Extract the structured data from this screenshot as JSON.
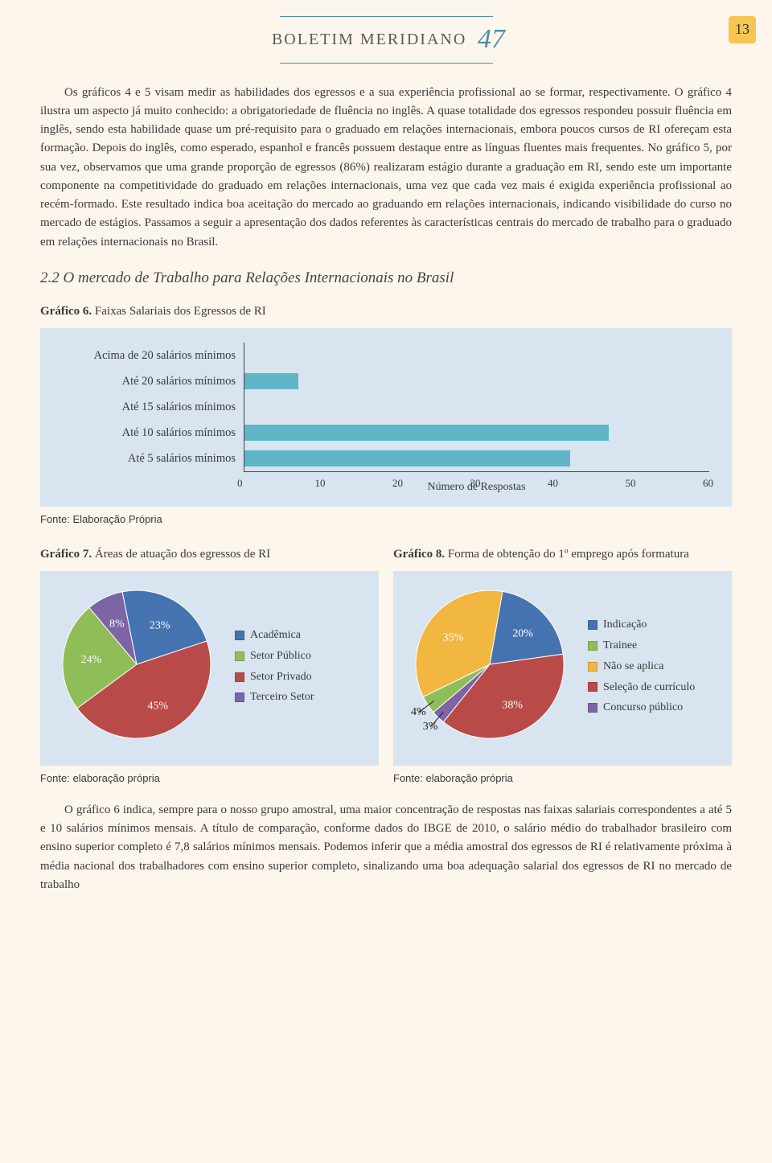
{
  "masthead": {
    "title": "BOLETIM MERIDIANO",
    "issue": "47",
    "rule_color": "#4a8fa6"
  },
  "page_number": "13",
  "page_bg": "#fdf6ed",
  "panel_bg": "#d8e4ef",
  "paragraph1": "Os gráficos 4 e 5 visam medir as habilidades dos egressos e a sua experiência profissional ao se formar, respectivamente. O gráfico 4 ilustra um aspecto já muito conhecido: a obrigatoriedade de fluência no inglês. A quase totalidade dos egressos respondeu possuir fluência em inglês, sendo esta habilidade quase um pré-requisito para o graduado em relações internacionais, embora poucos cursos de RI ofereçam esta formação. Depois do inglês, como esperado, espanhol e francês possuem destaque entre as línguas fluentes mais frequentes. No gráfico 5, por sua vez, observamos que uma grande proporção de egressos (86%) realizaram estágio durante a graduação em RI, sendo este um importante componente na competitividade do graduado em relações internacionais, uma vez que cada vez mais é exigida experiência profissional ao recém-formado. Este resultado indica boa aceitação do mercado ao graduando em relações internacionais, indicando visibilidade do curso no mercado de estágios. Passamos a seguir a apresentação dos dados referentes às características centrais do mercado de trabalho para o graduado em relações internacionais no Brasil.",
  "section_heading": "2.2 O mercado de Trabalho para Relações Internacionais no Brasil",
  "chart6": {
    "caption_bold": "Gráfico 6.",
    "caption_rest": " Faixas Salariais dos Egressos de RI",
    "type": "horizontal-bar",
    "categories": [
      "Acima de 20 salários mínimos",
      "Até 20 salários mínimos",
      "Até 15 salários mínimos",
      "Até 10 salários mínimos",
      "Até 5 salários mínimos"
    ],
    "values": [
      0,
      7,
      0,
      47,
      42
    ],
    "bar_color": "#5fb6c7",
    "axis_color": "#444444",
    "xlim": [
      0,
      60
    ],
    "xtick_step": 10,
    "xticks": [
      "0",
      "10",
      "20",
      "30",
      "40",
      "50",
      "60"
    ],
    "xlabel": "Número de Respostas",
    "source": "Fonte: Elaboração Própria"
  },
  "chart7": {
    "caption_bold": "Gráfico 7.",
    "caption_rest": " Áreas de atuação dos egressos de RI",
    "type": "pie",
    "slices": [
      {
        "label": "Acadêmica",
        "pct": 23,
        "color": "#4573b0",
        "text": "23%"
      },
      {
        "label": "Setor Público",
        "pct": 24,
        "color": "#8fbd58",
        "text": "24%"
      },
      {
        "label": "Setor Privado",
        "pct": 45,
        "color": "#b84a48",
        "text": "45%"
      },
      {
        "label": "Terceiro Setor",
        "pct": 8,
        "color": "#7d64a5",
        "text": "8%"
      }
    ],
    "start_angle_deg": -40,
    "legend_marker_size": 12,
    "source": "Fonte: elaboração própria"
  },
  "chart8": {
    "caption_bold": "Gráfico 8.",
    "caption_rest": " Forma de obtenção do 1º emprego após formatura",
    "type": "pie",
    "slices": [
      {
        "label": "Indicação",
        "pct": 20,
        "color": "#4573b0",
        "text": "20%"
      },
      {
        "label": "Trainee",
        "pct": 4,
        "color": "#8fbd58",
        "text": "4%"
      },
      {
        "label": "Não se aplica",
        "pct": 35,
        "color": "#f2b741",
        "text": "35%"
      },
      {
        "label": "Seleção de currículo",
        "pct": 38,
        "color": "#b84a48",
        "text": "38%"
      },
      {
        "label": "Concurso público",
        "pct": 3,
        "color": "#7d64a5",
        "text": "3%"
      }
    ],
    "start_angle_deg": 10,
    "legend_marker_size": 12,
    "source": "Fonte: elaboração própria"
  },
  "paragraph2": "O gráfico 6 indica, sempre para o nosso grupo amostral, uma maior concentração de respostas nas faixas salariais correspondentes a até 5 e 10 salários mínimos mensais. A título de comparação, conforme dados do IBGE de 2010, o salário médio do trabalhador brasileiro com ensino superior completo é 7,8 salários mínimos mensais. Podemos inferir que a média amostral dos egressos de RI é relativamente próxima à média nacional dos trabalhadores com ensino superior completo, sinalizando uma boa adequação salarial dos egressos de RI no mercado de trabalho"
}
